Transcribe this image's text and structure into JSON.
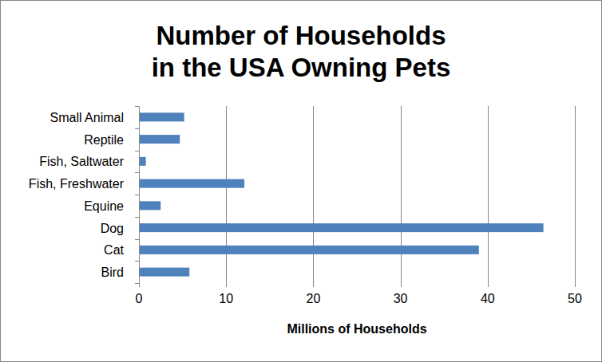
{
  "chart_data": {
    "type": "bar",
    "orientation": "horizontal",
    "title": "Number of Households\nin the USA Owning Pets",
    "xlabel": "Millions of Households",
    "categories": [
      "Bird",
      "Cat",
      "Dog",
      "Equine",
      "Fish, Freshwater",
      "Fish, Saltwater",
      "Reptile",
      "Small Animal"
    ],
    "values": [
      5.7,
      38.9,
      46.3,
      2.4,
      12,
      0.7,
      4.6,
      5.1
    ],
    "color": "#4f81bd",
    "xlim": [
      0,
      50
    ],
    "xticks": [
      0,
      10,
      20,
      30,
      40,
      50
    ],
    "grid": true
  }
}
